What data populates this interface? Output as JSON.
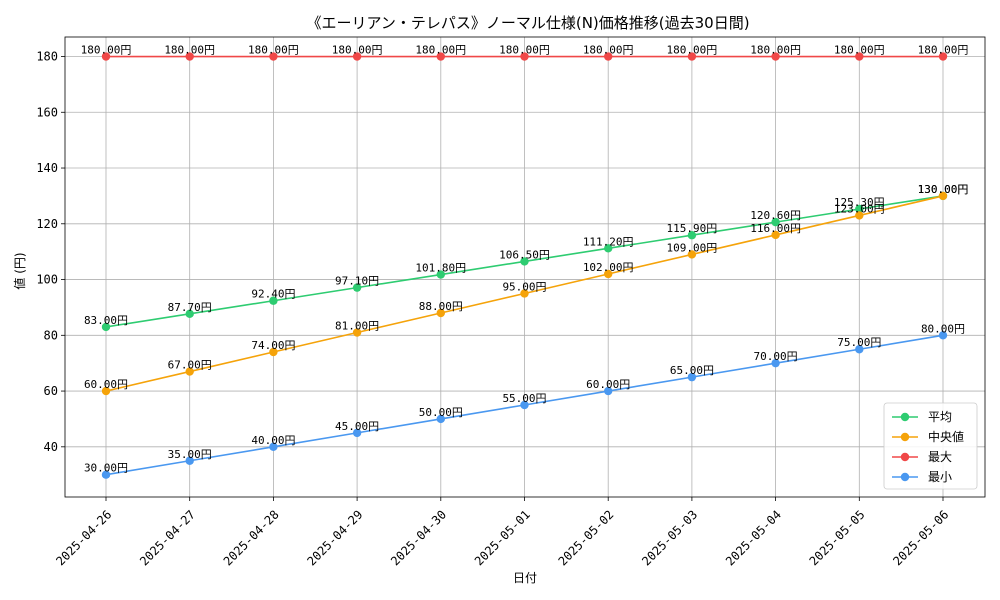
{
  "chart_data": {
    "type": "line",
    "title": "《エーリアン・テレパス》ノーマル仕様(N)価格推移(過去30日間)",
    "xlabel": "日付",
    "ylabel": "値 (円)",
    "x": [
      "2025-04-26",
      "2025-04-27",
      "2025-04-28",
      "2025-04-29",
      "2025-04-30",
      "2025-05-01",
      "2025-05-02",
      "2025-05-03",
      "2025-05-04",
      "2025-05-05",
      "2025-05-06"
    ],
    "ylim": [
      22,
      187
    ],
    "yticks": [
      40,
      60,
      80,
      100,
      120,
      140,
      160,
      180
    ],
    "grid": true,
    "legend_position": "lower-right",
    "value_label_suffix": "円",
    "series": [
      {
        "name": "平均",
        "color": "#2ecc71",
        "values": [
          83.0,
          87.7,
          92.4,
          97.1,
          101.8,
          106.5,
          111.2,
          115.9,
          120.6,
          125.3,
          130.0
        ]
      },
      {
        "name": "中央値",
        "color": "#f5a30a",
        "values": [
          60.0,
          67.0,
          74.0,
          81.0,
          88.0,
          95.0,
          102.0,
          109.0,
          116.0,
          123.0,
          130.0
        ]
      },
      {
        "name": "最大",
        "color": "#f04848",
        "values": [
          180.0,
          180.0,
          180.0,
          180.0,
          180.0,
          180.0,
          180.0,
          180.0,
          180.0,
          180.0,
          180.0
        ]
      },
      {
        "name": "最小",
        "color": "#4a98f0",
        "values": [
          30.0,
          35.0,
          40.0,
          45.0,
          50.0,
          55.0,
          60.0,
          65.0,
          70.0,
          75.0,
          80.0
        ]
      }
    ]
  }
}
